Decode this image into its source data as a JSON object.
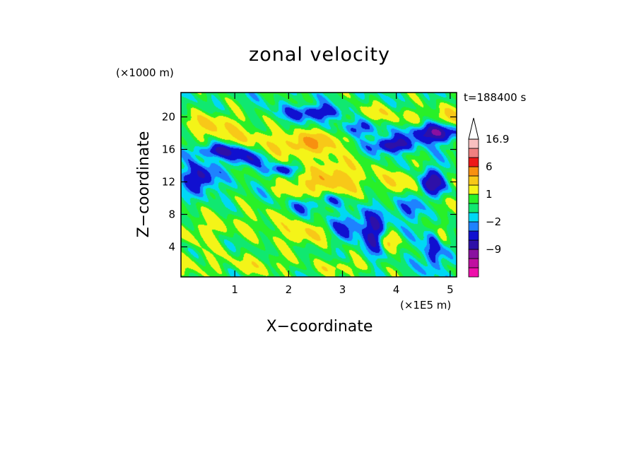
{
  "chart_data": {
    "type": "heatmap",
    "title": "zonal velocity",
    "xlabel": "X−coordinate",
    "ylabel": "Z−coordinate",
    "x_unit": "(×1E5 m)",
    "y_unit": "(×1000 m)",
    "time_label": "t=188400 s",
    "xlim": [
      0,
      5.12
    ],
    "ylim": [
      0.3,
      23.0
    ],
    "x_ticks": [
      "1",
      "2",
      "3",
      "4",
      "5"
    ],
    "y_ticks": [
      "4",
      "8",
      "12",
      "16",
      "20"
    ],
    "colorbar": {
      "labels": [
        "16.9",
        "6",
        "1",
        "−2",
        "−9"
      ],
      "label_values": [
        16.9,
        6,
        1,
        -2,
        -9
      ],
      "levels": [
        -15,
        -12,
        -9,
        -6,
        -4,
        -2,
        -1,
        0,
        1,
        2,
        4,
        6,
        9,
        12,
        16.9
      ],
      "colors": [
        "#ee10aa",
        "#c010a0",
        "#8a10a0",
        "#2e10a8",
        "#1010d0",
        "#1e82ff",
        "#00d8f4",
        "#10e870",
        "#28f028",
        "#f4f418",
        "#f8c818",
        "#f89010",
        "#ee1818",
        "#f08080",
        "#f8c0c0"
      ],
      "over_color": "#ffffff",
      "extend": "max"
    },
    "features": [
      {
        "x": 0.35,
        "z": 12.5,
        "u": -5.5,
        "rx": 0.28,
        "rz": 1.6
      },
      {
        "x": 0.75,
        "z": 15.8,
        "u": -5.0,
        "rx": 0.45,
        "rz": 0.8
      },
      {
        "x": 1.2,
        "z": 14.8,
        "u": -3.5,
        "rx": 0.35,
        "rz": 0.9
      },
      {
        "x": 0.6,
        "z": 19.0,
        "u": 3.5,
        "rx": 0.6,
        "rz": 1.5
      },
      {
        "x": 1.2,
        "z": 17.5,
        "u": 2.0,
        "rx": 0.5,
        "rz": 1.2
      },
      {
        "x": 2.2,
        "z": 16.5,
        "u": 4.5,
        "rx": 0.65,
        "rz": 1.5
      },
      {
        "x": 2.7,
        "z": 17.5,
        "u": 3.0,
        "rx": 0.35,
        "rz": 1.2
      },
      {
        "x": 2.5,
        "z": 20.5,
        "u": -4.5,
        "rx": 0.55,
        "rz": 0.9
      },
      {
        "x": 3.2,
        "z": 18.5,
        "u": -3.5,
        "rx": 0.35,
        "rz": 1.0
      },
      {
        "x": 3.5,
        "z": 20.5,
        "u": 2.5,
        "rx": 0.5,
        "rz": 1.0
      },
      {
        "x": 3.9,
        "z": 16.5,
        "u": -6.0,
        "rx": 0.35,
        "rz": 0.9
      },
      {
        "x": 4.7,
        "z": 18.0,
        "u": -7.0,
        "rx": 0.42,
        "rz": 1.1
      },
      {
        "x": 4.3,
        "z": 20.0,
        "u": 2.0,
        "rx": 0.4,
        "rz": 1.0
      },
      {
        "x": 2.9,
        "z": 12.5,
        "u": 4.5,
        "rx": 0.55,
        "rz": 2.3
      },
      {
        "x": 2.2,
        "z": 11.5,
        "u": 2.5,
        "rx": 0.4,
        "rz": 1.5
      },
      {
        "x": 1.9,
        "z": 13.5,
        "u": -3.5,
        "rx": 0.3,
        "rz": 0.7
      },
      {
        "x": 2.3,
        "z": 9.0,
        "u": -2.5,
        "rx": 0.3,
        "rz": 1.0
      },
      {
        "x": 4.1,
        "z": 12.0,
        "u": 3.0,
        "rx": 0.4,
        "rz": 1.6
      },
      {
        "x": 4.65,
        "z": 11.8,
        "u": -6.5,
        "rx": 0.22,
        "rz": 1.7
      },
      {
        "x": 3.6,
        "z": 5.5,
        "u": -5.5,
        "rx": 0.2,
        "rz": 2.6
      },
      {
        "x": 4.7,
        "z": 3.5,
        "u": -4.5,
        "rx": 0.18,
        "rz": 2.6
      },
      {
        "x": 2.3,
        "z": 5.5,
        "u": 3.0,
        "rx": 0.45,
        "rz": 1.5
      },
      {
        "x": 3.1,
        "z": 6.5,
        "u": -3.5,
        "rx": 0.3,
        "rz": 1.5
      },
      {
        "x": 1.5,
        "z": 7.0,
        "u": 1.5,
        "rx": 0.7,
        "rz": 2.0
      },
      {
        "x": 0.4,
        "z": 6.0,
        "u": 2.0,
        "rx": 0.5,
        "rz": 2.0
      },
      {
        "x": 0.3,
        "z": 2.0,
        "u": 1.5,
        "rx": 0.6,
        "rz": 1.5
      },
      {
        "x": 1.5,
        "z": 1.8,
        "u": 2.0,
        "rx": 0.6,
        "rz": 1.3
      },
      {
        "x": 3.0,
        "z": 1.5,
        "u": 2.5,
        "rx": 0.5,
        "rz": 1.0
      },
      {
        "x": 3.8,
        "z": 4.5,
        "u": 3.5,
        "rx": 0.2,
        "rz": 1.5
      },
      {
        "x": 4.2,
        "z": 8.5,
        "u": -2.0,
        "rx": 0.4,
        "rz": 1.5
      },
      {
        "x": 2.8,
        "z": 9.8,
        "u": -2.5,
        "rx": 0.3,
        "rz": 0.8
      },
      {
        "x": 4.85,
        "z": 5.5,
        "u": 3.0,
        "rx": 0.12,
        "rz": 2.5
      },
      {
        "x": 4.95,
        "z": 9.5,
        "u": 1.5,
        "rx": 0.3,
        "rz": 2.0
      },
      {
        "x": 5.0,
        "z": 20.0,
        "u": 3.0,
        "rx": 0.3,
        "rz": 1.5
      }
    ]
  }
}
